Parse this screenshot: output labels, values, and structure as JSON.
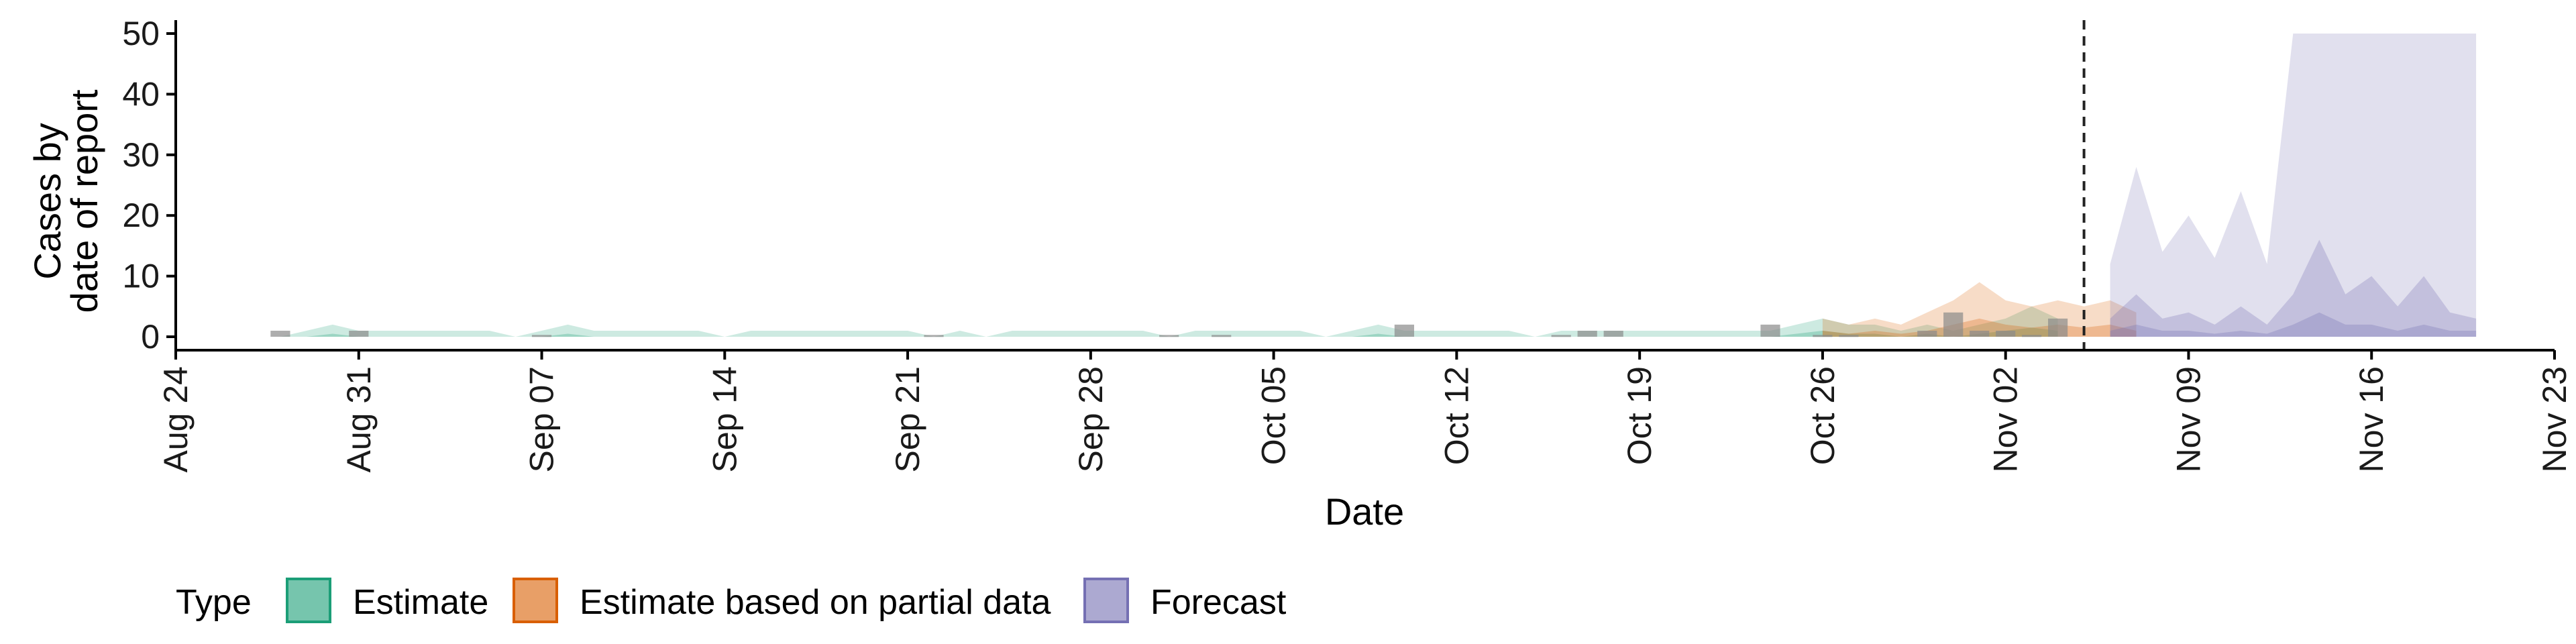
{
  "chart_data": {
    "type": "area",
    "xlabel": "Date",
    "ylabel_line1": "Cases by",
    "ylabel_line2": "date of report",
    "x_range": [
      "2020-08-24",
      "2020-11-23"
    ],
    "ylim": [
      0,
      50
    ],
    "y_ticks": [
      "0",
      "10",
      "20",
      "30",
      "40",
      "50"
    ],
    "x_ticks": [
      {
        "date": "2020-08-24",
        "label": "Aug 24"
      },
      {
        "date": "2020-08-31",
        "label": "Aug 31"
      },
      {
        "date": "2020-09-07",
        "label": "Sep 07"
      },
      {
        "date": "2020-09-14",
        "label": "Sep 14"
      },
      {
        "date": "2020-09-21",
        "label": "Sep 21"
      },
      {
        "date": "2020-09-28",
        "label": "Sep 28"
      },
      {
        "date": "2020-10-05",
        "label": "Oct 05"
      },
      {
        "date": "2020-10-12",
        "label": "Oct 12"
      },
      {
        "date": "2020-10-19",
        "label": "Oct 19"
      },
      {
        "date": "2020-10-26",
        "label": "Oct 26"
      },
      {
        "date": "2020-11-02",
        "label": "Nov 02"
      },
      {
        "date": "2020-11-09",
        "label": "Nov 09"
      },
      {
        "date": "2020-11-16",
        "label": "Nov 16"
      },
      {
        "date": "2020-11-23",
        "label": "Nov 23"
      }
    ],
    "forecast_date": "2020-11-05",
    "legend_title": "Type",
    "legend": [
      {
        "name": "Estimate",
        "fill": "#1b9e77"
      },
      {
        "name": "Estimate based on partial data",
        "fill": "#d95f02"
      },
      {
        "name": "Forecast",
        "fill": "#7570b3"
      }
    ],
    "series": [
      {
        "name": "Estimate",
        "color": "#1b9e77",
        "start": "2020-08-28",
        "upper90": [
          0,
          1,
          2,
          1,
          1,
          1,
          1,
          1,
          1,
          0,
          1,
          2,
          1,
          1,
          1,
          1,
          1,
          0,
          1,
          1,
          1,
          1,
          1,
          1,
          1,
          0,
          1,
          0,
          1,
          1,
          1,
          1,
          1,
          1,
          0,
          1,
          1,
          1,
          1,
          1,
          0,
          1,
          2,
          1,
          1,
          1,
          1,
          1,
          0,
          1,
          1,
          1,
          1,
          1,
          1,
          1,
          1,
          1,
          2,
          3,
          2,
          2,
          1,
          2,
          1,
          2,
          3,
          5,
          3
        ],
        "upper50": [
          0,
          0,
          0.5,
          0,
          0,
          0,
          0,
          0,
          0,
          0,
          0,
          0.5,
          0,
          0,
          0,
          0,
          0,
          0,
          0,
          0,
          0,
          0,
          0,
          0,
          0,
          0,
          0,
          0,
          0,
          0,
          0,
          0,
          0,
          0,
          0,
          0,
          0,
          0,
          0,
          0,
          0,
          0,
          0.5,
          0,
          0,
          0,
          0,
          0,
          0,
          0,
          0,
          0,
          0,
          0,
          0,
          0,
          0,
          0,
          0.5,
          1,
          0.5,
          0.5,
          0,
          0.5,
          0,
          0.5,
          1,
          1.5,
          1
        ]
      },
      {
        "name": "Estimate based on partial data",
        "color": "#d95f02",
        "start": "2020-10-26",
        "upper90": [
          3,
          2,
          3,
          2,
          4,
          6,
          9,
          6,
          5,
          6,
          5,
          6,
          4
        ],
        "upper50": [
          1,
          0.5,
          1,
          0.5,
          1,
          2,
          3,
          2,
          1.5,
          2,
          1.5,
          2,
          1
        ]
      },
      {
        "name": "Forecast",
        "color": "#7570b3",
        "start": "2020-11-06",
        "upper90": [
          12,
          28,
          14,
          20,
          13,
          24,
          12,
          50,
          50,
          50,
          50,
          50,
          50,
          50,
          50
        ],
        "upper50": [
          3,
          7,
          3,
          4,
          2,
          5,
          2,
          7,
          16,
          7,
          10,
          5,
          10,
          4,
          3
        ],
        "upper20": [
          1,
          2,
          1,
          1,
          0.5,
          1,
          0.5,
          2,
          4,
          2,
          2,
          1,
          2,
          1,
          1
        ]
      }
    ],
    "reported_cases": [
      {
        "date": "2020-08-28",
        "value": 1
      },
      {
        "date": "2020-08-31",
        "value": 1
      },
      {
        "date": "2020-09-07",
        "value": 0.3
      },
      {
        "date": "2020-09-22",
        "value": 0.3
      },
      {
        "date": "2020-10-01",
        "value": 0.3
      },
      {
        "date": "2020-10-03",
        "value": 0.3
      },
      {
        "date": "2020-10-10",
        "value": 2
      },
      {
        "date": "2020-10-16",
        "value": 0.3
      },
      {
        "date": "2020-10-17",
        "value": 1
      },
      {
        "date": "2020-10-18",
        "value": 1
      },
      {
        "date": "2020-10-24",
        "value": 2
      },
      {
        "date": "2020-10-26",
        "value": 0.3
      },
      {
        "date": "2020-10-27",
        "value": 0.3
      },
      {
        "date": "2020-10-30",
        "value": 1
      },
      {
        "date": "2020-10-31",
        "value": 4
      },
      {
        "date": "2020-11-01",
        "value": 1
      },
      {
        "date": "2020-11-02",
        "value": 1
      },
      {
        "date": "2020-11-03",
        "value": 0.3
      },
      {
        "date": "2020-11-04",
        "value": 3
      }
    ]
  }
}
